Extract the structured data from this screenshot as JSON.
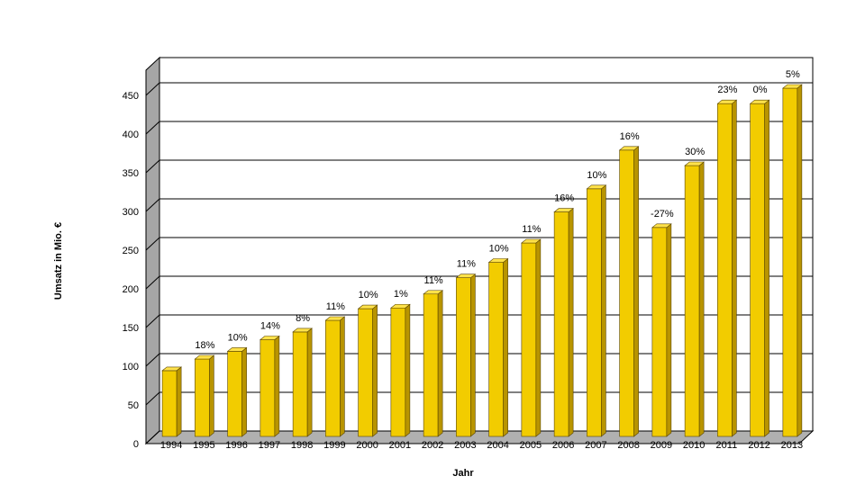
{
  "chart_data": {
    "type": "bar",
    "categories": [
      "1994",
      "1995",
      "1996",
      "1997",
      "1998",
      "1999",
      "2000",
      "2001",
      "2002",
      "2003",
      "2004",
      "2005",
      "2006",
      "2007",
      "2008",
      "2009",
      "2010",
      "2011",
      "2012",
      "2013"
    ],
    "values": [
      85,
      100,
      110,
      125,
      135,
      150,
      165,
      166,
      184,
      205,
      225,
      250,
      290,
      320,
      370,
      270,
      350,
      430,
      430,
      450
    ],
    "data_labels": [
      "",
      "18%",
      "10%",
      "14%",
      "8%",
      "11%",
      "10%",
      "1%",
      "11%",
      "11%",
      "10%",
      "11%",
      "16%",
      "10%",
      "16%",
      "-27%",
      "30%",
      "23%",
      "0%",
      "5%"
    ],
    "xlabel": "Jahr",
    "ylabel": "Umsatz in Mio. €",
    "ylim": [
      0,
      450
    ],
    "yticks": [
      0,
      50,
      100,
      150,
      200,
      250,
      300,
      350,
      400,
      450
    ],
    "grid": true,
    "legend": "none",
    "colors": {
      "bar_front": "#f2cc00",
      "bar_side": "#b89400",
      "bar_top": "#ffe24a",
      "wall": "#ffffff",
      "wall_side": "#a6a6a6",
      "floor": "#b0b0b0",
      "grid": "#000000"
    }
  }
}
